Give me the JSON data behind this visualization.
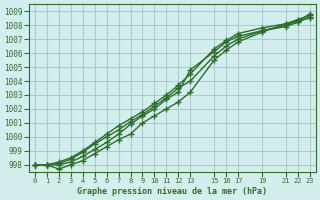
{
  "title": "Graphe pression niveau de la mer (hPa)",
  "background_color": "#d4eeee",
  "grid_color": "#aacccc",
  "line_color": "#2d6e2d",
  "ylim": [
    997.5,
    1009.5
  ],
  "xlim": [
    -0.5,
    23.5
  ],
  "yticks": [
    998,
    999,
    1000,
    1001,
    1002,
    1003,
    1004,
    1005,
    1006,
    1007,
    1008,
    1009
  ],
  "xticks": [
    0,
    1,
    2,
    3,
    4,
    5,
    6,
    7,
    8,
    9,
    10,
    11,
    12,
    13,
    15,
    16,
    17,
    19,
    21,
    22,
    23
  ],
  "series": [
    [
      998.0,
      998.0,
      997.7,
      998.0,
      998.3,
      998.8,
      999.3,
      999.8,
      1000.2,
      1001.0,
      1001.5,
      1002.0,
      1002.5,
      1003.2,
      1005.5,
      1006.2,
      1006.8,
      1007.5,
      1008.1,
      1008.3,
      1008.5
    ],
    [
      998.0,
      998.0,
      998.1,
      998.4,
      998.9,
      999.5,
      1000.0,
      1000.5,
      1001.1,
      1001.6,
      1002.2,
      1002.8,
      1003.5,
      1004.0,
      1005.8,
      1006.5,
      1007.0,
      1007.6,
      1007.9,
      1008.2,
      1008.6
    ],
    [
      998.0,
      998.0,
      998.2,
      998.5,
      999.0,
      999.6,
      1000.2,
      1000.8,
      1001.3,
      1001.8,
      1002.4,
      1003.0,
      1003.7,
      1004.5,
      1006.3,
      1006.9,
      1007.4,
      1007.8,
      1008.1,
      1008.4,
      1008.7
    ],
    [
      998.0,
      998.0,
      998.0,
      998.2,
      998.6,
      999.1,
      999.6,
      1000.2,
      1000.9,
      1001.5,
      1002.0,
      1002.7,
      1003.2,
      1004.8,
      1006.1,
      1006.8,
      1007.2,
      1007.6,
      1008.0,
      1008.3,
      1008.8
    ]
  ],
  "series_x": [
    0,
    1,
    2,
    3,
    4,
    5,
    6,
    7,
    8,
    9,
    10,
    11,
    12,
    13,
    15,
    16,
    17,
    19,
    21,
    22,
    23
  ]
}
